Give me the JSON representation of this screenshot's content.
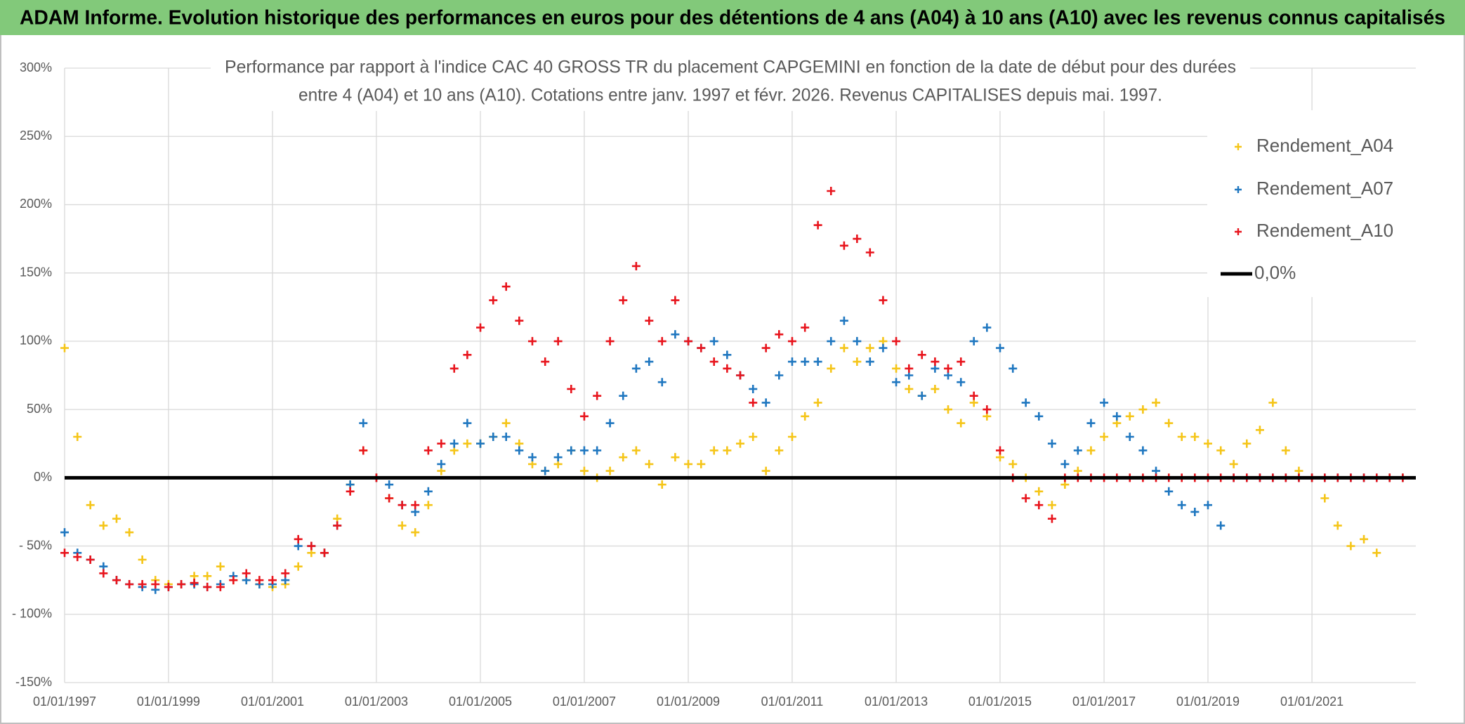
{
  "chart_data": {
    "type": "scatter",
    "title": "ADAM Informe. Evolution historique des performances en euros pour des détentions de 4 ans (A04) à 10 ans (A10) avec les revenus connus capitalisés",
    "subtitle": [
      "Performance par rapport à l'indice CAC 40 GROSS TR  du placement CAPGEMINI en fonction de la date de début pour des durées",
      "entre 4 (A04) et 10 ans (A10). Cotations entre janv. 1997 et févr. 2026. Revenus CAPITALISES depuis mai. 1997."
    ],
    "x": [
      "01/01/1997",
      "01/04/1997",
      "01/07/1997",
      "01/10/1997",
      "01/01/1998",
      "01/04/1998",
      "01/07/1998",
      "01/10/1998",
      "01/01/1999",
      "01/04/1999",
      "01/07/1999",
      "01/10/1999",
      "01/01/2000",
      "01/04/2000",
      "01/07/2000",
      "01/10/2000",
      "01/01/2001",
      "01/04/2001",
      "01/07/2001",
      "01/10/2001",
      "01/01/2002",
      "01/04/2002",
      "01/07/2002",
      "01/10/2002",
      "01/01/2003",
      "01/04/2003",
      "01/07/2003",
      "01/10/2003",
      "01/01/2004",
      "01/04/2004",
      "01/07/2004",
      "01/10/2004",
      "01/01/2005",
      "01/04/2005",
      "01/07/2005",
      "01/10/2005",
      "01/01/2006",
      "01/04/2006",
      "01/07/2006",
      "01/10/2006",
      "01/01/2007",
      "01/04/2007",
      "01/07/2007",
      "01/10/2007",
      "01/01/2008",
      "01/04/2008",
      "01/07/2008",
      "01/10/2008",
      "01/01/2009",
      "01/04/2009",
      "01/07/2009",
      "01/10/2009",
      "01/01/2010",
      "01/04/2010",
      "01/07/2010",
      "01/10/2010",
      "01/01/2011",
      "01/04/2011",
      "01/07/2011",
      "01/10/2011",
      "01/01/2012",
      "01/04/2012",
      "01/07/2012",
      "01/10/2012",
      "01/01/2013",
      "01/04/2013",
      "01/07/2013",
      "01/10/2013",
      "01/01/2014",
      "01/04/2014",
      "01/07/2014",
      "01/10/2014",
      "01/01/2015",
      "01/04/2015",
      "01/07/2015",
      "01/10/2015",
      "01/01/2016",
      "01/04/2016",
      "01/07/2016",
      "01/10/2016",
      "01/01/2017",
      "01/04/2017",
      "01/07/2017",
      "01/10/2017",
      "01/01/2018",
      "01/04/2018",
      "01/07/2018",
      "01/10/2018",
      "01/01/2019",
      "01/04/2019",
      "01/07/2019",
      "01/10/2019",
      "01/01/2020",
      "01/04/2020",
      "01/07/2020",
      "01/10/2020",
      "01/01/2021",
      "01/04/2021",
      "01/07/2021",
      "01/10/2021",
      "01/01/2022",
      "01/04/2022",
      "01/07/2022",
      "01/10/2022"
    ],
    "series": [
      {
        "name": "Rendement_A04",
        "color": "#f5c518",
        "values": [
          95,
          30,
          -20,
          -35,
          -30,
          -40,
          -60,
          -75,
          -78,
          -78,
          -72,
          -72,
          -65,
          -75,
          -75,
          -78,
          -80,
          -78,
          -65,
          -55,
          -55,
          -30,
          -5,
          20,
          0,
          -15,
          -35,
          -40,
          -20,
          5,
          20,
          25,
          25,
          30,
          40,
          25,
          10,
          5,
          10,
          20,
          5,
          0,
          5,
          15,
          20,
          10,
          -5,
          15,
          10,
          10,
          20,
          20,
          25,
          30,
          5,
          20,
          30,
          45,
          55,
          80,
          95,
          85,
          95,
          100,
          80,
          65,
          60,
          65,
          50,
          40,
          55,
          45,
          15,
          10,
          0,
          -10,
          -20,
          -5,
          5,
          20,
          30,
          40,
          45,
          50,
          55,
          40,
          30,
          30,
          25,
          20,
          10,
          25,
          35,
          55,
          20,
          5,
          0,
          -15,
          -35,
          -50,
          -45,
          -55,
          0,
          0
        ]
      },
      {
        "name": "Rendement_A07",
        "color": "#1f77c0",
        "values": [
          -40,
          -55,
          -60,
          -65,
          -75,
          -78,
          -80,
          -82,
          -80,
          -78,
          -78,
          -80,
          -78,
          -72,
          -75,
          -78,
          -78,
          -75,
          -50,
          -50,
          -55,
          -35,
          -5,
          40,
          0,
          -5,
          -20,
          -25,
          -10,
          10,
          25,
          40,
          25,
          30,
          30,
          20,
          15,
          5,
          15,
          20,
          20,
          20,
          40,
          60,
          80,
          85,
          70,
          105,
          100,
          95,
          100,
          90,
          75,
          65,
          55,
          75,
          85,
          85,
          85,
          100,
          115,
          100,
          85,
          95,
          70,
          75,
          60,
          80,
          75,
          70,
          100,
          110,
          95,
          80,
          55,
          45,
          25,
          10,
          20,
          40,
          55,
          45,
          30,
          20,
          5,
          -10,
          -20,
          -25,
          -20,
          -35,
          0,
          0,
          0,
          0,
          0,
          0,
          0,
          0,
          0,
          0,
          0,
          0,
          0,
          0
        ]
      },
      {
        "name": "Rendement_A10",
        "color": "#e8141c",
        "values": [
          -55,
          -58,
          -60,
          -70,
          -75,
          -78,
          -78,
          -78,
          -80,
          -78,
          -77,
          -80,
          -80,
          -75,
          -70,
          -75,
          -75,
          -70,
          -45,
          -50,
          -55,
          -35,
          -10,
          20,
          0,
          -15,
          -20,
          -20,
          20,
          25,
          80,
          90,
          110,
          130,
          140,
          115,
          100,
          85,
          100,
          65,
          45,
          60,
          100,
          130,
          155,
          115,
          100,
          130,
          100,
          95,
          85,
          80,
          75,
          55,
          95,
          105,
          100,
          110,
          185,
          210,
          170,
          175,
          165,
          130,
          100,
          80,
          90,
          85,
          80,
          85,
          60,
          50,
          20,
          0,
          -15,
          -20,
          -30,
          0,
          0,
          0,
          0,
          0,
          0,
          0,
          0,
          0,
          0,
          0,
          0,
          0,
          0,
          0,
          0,
          0,
          0,
          0,
          0,
          0,
          0,
          0,
          0,
          0,
          0,
          0
        ]
      }
    ],
    "reference_line": {
      "name": "0,0%",
      "color": "#000000",
      "value": 0
    },
    "xlim": [
      "01/01/1997",
      "01/01/2023"
    ],
    "xticks": [
      "01/01/1997",
      "01/01/1999",
      "01/01/2001",
      "01/01/2003",
      "01/01/2005",
      "01/01/2007",
      "01/01/2009",
      "01/01/2011",
      "01/01/2013",
      "01/01/2015",
      "01/01/2017",
      "01/01/2019",
      "01/01/2021"
    ],
    "ylim": [
      -150,
      300
    ],
    "yticks": [
      {
        "value": 300,
        "label": "300%"
      },
      {
        "value": 250,
        "label": "250%"
      },
      {
        "value": 200,
        "label": "200%"
      },
      {
        "value": 150,
        "label": "150%"
      },
      {
        "value": 100,
        "label": "100%"
      },
      {
        "value": 50,
        "label": "50%"
      },
      {
        "value": 0,
        "label": "0%"
      },
      {
        "value": -50,
        "label": "- 50%"
      },
      {
        "value": -100,
        "label": "- 100%"
      },
      {
        "value": -150,
        "label": "-150%"
      }
    ],
    "grid": true,
    "legend": "top-right"
  }
}
